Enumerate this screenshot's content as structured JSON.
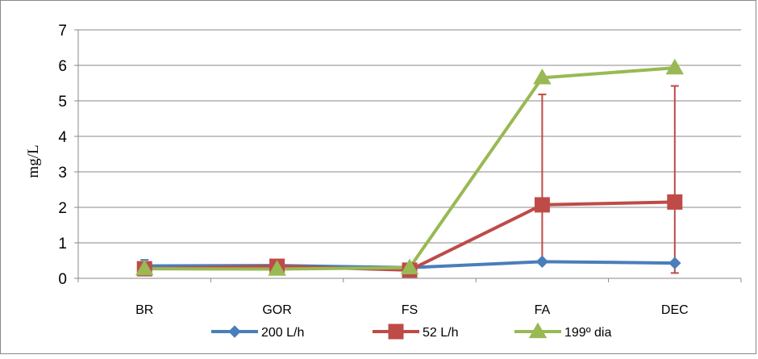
{
  "chart_data": {
    "type": "line",
    "title": "",
    "xlabel": "",
    "ylabel": "mg/L",
    "categories": [
      "BR",
      "GOR",
      "FS",
      "FA",
      "DEC"
    ],
    "ylim": [
      0,
      7
    ],
    "yticks": [
      0,
      1,
      2,
      3,
      4,
      5,
      6,
      7
    ],
    "grid": "horizontal",
    "legend_position": "bottom",
    "series": [
      {
        "name": "200 L/h",
        "color": "#4a7ebb",
        "marker": "diamond",
        "values": [
          0.35,
          0.36,
          0.3,
          0.47,
          0.43
        ],
        "error_low": [
          0.2,
          0,
          0,
          0,
          0
        ],
        "error_high": [
          0.52,
          0,
          0,
          0,
          0
        ]
      },
      {
        "name": "52 L/h",
        "color": "#be4b48",
        "marker": "square",
        "values": [
          0.27,
          0.34,
          0.23,
          2.07,
          2.15
        ],
        "error_low": [
          0,
          0,
          0,
          0.5,
          0.15
        ],
        "error_high": [
          0,
          0,
          0,
          5.18,
          5.42
        ]
      },
      {
        "name": "199º dia",
        "color": "#98b954",
        "marker": "triangle",
        "values": [
          0.27,
          0.26,
          0.3,
          5.65,
          5.93
        ]
      }
    ]
  }
}
